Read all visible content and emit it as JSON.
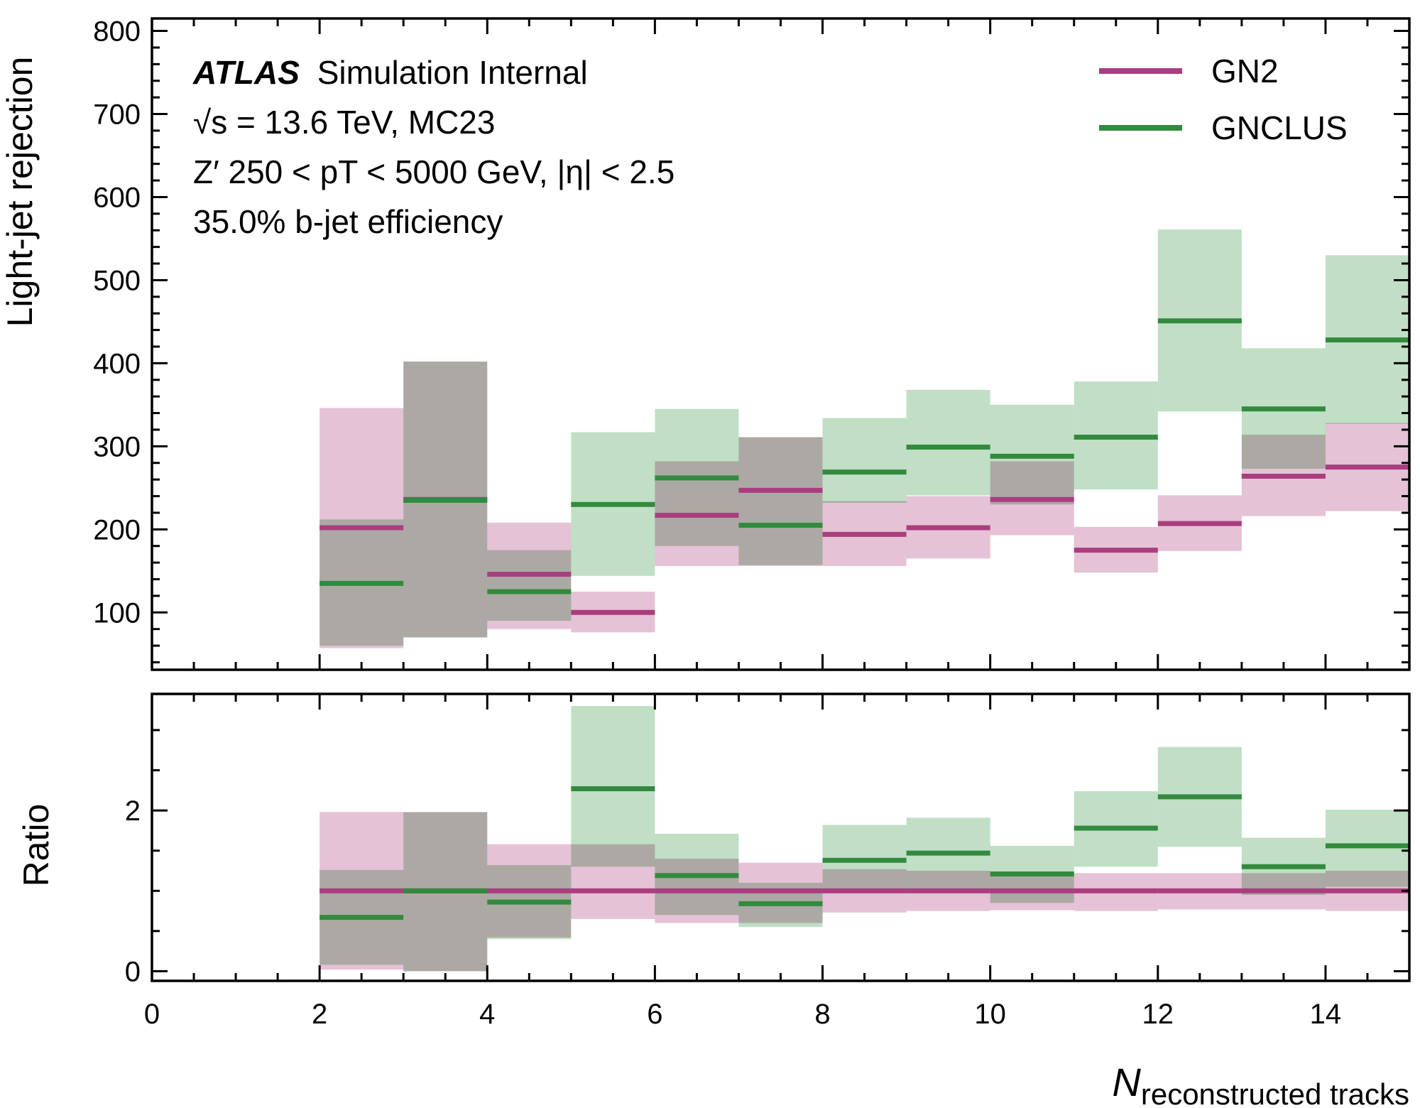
{
  "chart_data": [
    {
      "type": "step",
      "panel": "main",
      "ylabel": "Light-jet rejection",
      "xlim": [
        0,
        15
      ],
      "ylim": [
        31,
        815
      ],
      "yticks": [
        "100",
        "200",
        "300",
        "400",
        "500",
        "600",
        "700",
        "800"
      ],
      "bins": [
        [
          2,
          3
        ],
        [
          3,
          4
        ],
        [
          4,
          5
        ],
        [
          5,
          6
        ],
        [
          6,
          7
        ],
        [
          7,
          8
        ],
        [
          8,
          9
        ],
        [
          9,
          10
        ],
        [
          10,
          11
        ],
        [
          11,
          12
        ],
        [
          12,
          13
        ],
        [
          13,
          14
        ],
        [
          14,
          15
        ]
      ],
      "series": [
        {
          "name": "GN2",
          "color": "#a93e7f",
          "band_color": "#e4bfd3",
          "values": [
            202,
            236,
            146,
            100,
            217,
            247,
            194,
            202,
            236,
            175,
            207,
            264,
            275
          ],
          "band_low": [
            57,
            70,
            80,
            76,
            156,
            156,
            156,
            165,
            193,
            148,
            174,
            216,
            222
          ],
          "band_high": [
            346,
            402,
            208,
            125,
            282,
            311,
            234,
            240,
            282,
            203,
            241,
            314,
            328
          ]
        },
        {
          "name": "GNCLUS",
          "color": "#338a3e",
          "band_color": "#bdddc2",
          "values": [
            135,
            235,
            125,
            230,
            262,
            205,
            269,
            299,
            288,
            311,
            451,
            345,
            428
          ],
          "band_low": [
            60,
            70,
            90,
            144,
            180,
            157,
            232,
            241,
            230,
            248,
            342,
            273,
            327
          ],
          "band_high": [
            212,
            402,
            175,
            317,
            345,
            311,
            334,
            368,
            350,
            378,
            561,
            418,
            530
          ]
        }
      ],
      "legend": [
        "GN2",
        "GNCLUS"
      ],
      "legend_position": "top-right",
      "annotations": {
        "experiment": "ATLAS",
        "label": "Simulation Internal",
        "energy_line": "√s = 13.6 TeV, MC23",
        "selection_line": "Z′ 250 < pT < 5000 GeV, |η| < 2.5",
        "efficiency_line": "35.0% b-jet efficiency"
      }
    },
    {
      "type": "step",
      "panel": "ratio",
      "ylabel": "Ratio",
      "xlabel": "N reconstructed tracks",
      "xlim": [
        0,
        15
      ],
      "ylim": [
        -0.12,
        3.45
      ],
      "xticks": [
        "0",
        "2",
        "4",
        "6",
        "8",
        "10",
        "12",
        "14"
      ],
      "yticks": [
        "0",
        "2"
      ],
      "bins": [
        [
          2,
          3
        ],
        [
          3,
          4
        ],
        [
          4,
          5
        ],
        [
          5,
          6
        ],
        [
          6,
          7
        ],
        [
          7,
          8
        ],
        [
          8,
          9
        ],
        [
          9,
          10
        ],
        [
          10,
          11
        ],
        [
          11,
          12
        ],
        [
          12,
          13
        ],
        [
          13,
          14
        ],
        [
          14,
          15
        ]
      ],
      "series": [
        {
          "name": "GN2",
          "color": "#a93e7f",
          "band_color": "#e4bfd3",
          "values": [
            1,
            1,
            1,
            1,
            1,
            1,
            1,
            1,
            1,
            1,
            1,
            1,
            1
          ],
          "band_low": [
            0.02,
            0.0,
            0.42,
            0.65,
            0.6,
            0.6,
            0.73,
            0.75,
            0.76,
            0.75,
            0.77,
            0.77,
            0.75
          ],
          "band_high": [
            1.98,
            1.98,
            1.58,
            1.58,
            1.4,
            1.35,
            1.27,
            1.25,
            1.22,
            1.22,
            1.22,
            1.22,
            1.25
          ]
        },
        {
          "name": "GNCLUS",
          "color": "#338a3e",
          "band_color": "#bdddc2",
          "values": [
            0.67,
            1.0,
            0.86,
            2.27,
            1.19,
            0.84,
            1.38,
            1.47,
            1.21,
            1.78,
            2.17,
            1.3,
            1.56
          ],
          "band_low": [
            0.08,
            0.0,
            0.4,
            1.3,
            0.7,
            0.55,
            1.0,
            1.0,
            0.85,
            1.3,
            1.55,
            0.95,
            1.05
          ],
          "band_high": [
            1.26,
            1.98,
            1.32,
            3.3,
            1.71,
            1.1,
            1.82,
            1.91,
            1.56,
            2.24,
            2.79,
            1.66,
            2.01
          ]
        }
      ]
    }
  ]
}
